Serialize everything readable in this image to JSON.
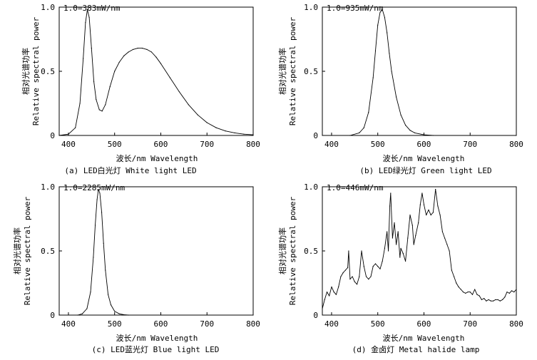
{
  "chart_data": [
    {
      "type": "line",
      "title": "",
      "caption": "(a) LED白光灯 White light LED",
      "annotation": "1.0=383mW/nm",
      "xlabel": "波长/nm Wavelength",
      "ylabel_cn": "相对光谱功率",
      "ylabel_en": "Relative spectral power",
      "xlim": [
        380,
        800
      ],
      "ylim": [
        0,
        1.0
      ],
      "xticks": [
        "400",
        "500",
        "600",
        "700",
        "800"
      ],
      "yticks": [
        "0",
        "0.5",
        "1.0"
      ],
      "series": [
        {
          "x": [
            380,
            400,
            415,
            425,
            432,
            437,
            441,
            445,
            450,
            455,
            460,
            467,
            473,
            480,
            490,
            500,
            510,
            520,
            530,
            540,
            550,
            560,
            570,
            580,
            590,
            600,
            620,
            640,
            660,
            680,
            700,
            720,
            740,
            760,
            780,
            800
          ],
          "y": [
            0,
            0.01,
            0.06,
            0.25,
            0.6,
            0.88,
            0.98,
            0.92,
            0.68,
            0.42,
            0.28,
            0.2,
            0.19,
            0.24,
            0.38,
            0.5,
            0.57,
            0.62,
            0.65,
            0.67,
            0.68,
            0.68,
            0.67,
            0.65,
            0.61,
            0.56,
            0.45,
            0.34,
            0.24,
            0.16,
            0.1,
            0.06,
            0.035,
            0.02,
            0.01,
            0.005
          ]
        }
      ]
    },
    {
      "type": "line",
      "title": "",
      "caption": "(b) LED绿光灯 Green light LED",
      "annotation": "1.0=935mW/nm",
      "xlabel": "波长/nm Wavelength",
      "ylabel_cn": "相对光谱功率",
      "ylabel_en": "Relative spectral power",
      "xlim": [
        380,
        800
      ],
      "ylim": [
        0,
        1.0
      ],
      "xticks": [
        "400",
        "500",
        "600",
        "700",
        "800"
      ],
      "yticks": [
        "0",
        "0.5",
        "1.0"
      ],
      "series": [
        {
          "x": [
            380,
            440,
            460,
            470,
            480,
            490,
            495,
            500,
            505,
            510,
            515,
            520,
            525,
            530,
            540,
            550,
            560,
            570,
            580,
            600,
            620,
            800
          ],
          "y": [
            0,
            0,
            0.02,
            0.06,
            0.18,
            0.45,
            0.66,
            0.86,
            0.96,
            0.98,
            0.92,
            0.8,
            0.64,
            0.5,
            0.3,
            0.16,
            0.08,
            0.04,
            0.02,
            0.005,
            0,
            0
          ]
        }
      ]
    },
    {
      "type": "line",
      "title": "",
      "caption": "(c) LED蓝光灯 Blue light LED",
      "annotation": "1.0=2285mW/nm",
      "xlabel": "波长/nm Wavelength",
      "ylabel_cn": "相对光谱功率",
      "ylabel_en": "Relative spectral power",
      "xlim": [
        380,
        800
      ],
      "ylim": [
        0,
        1.0
      ],
      "xticks": [
        "400",
        "500",
        "600",
        "700",
        "800"
      ],
      "yticks": [
        "0",
        "0.5",
        "1.0"
      ],
      "series": [
        {
          "x": [
            380,
            420,
            430,
            440,
            448,
            454,
            458,
            462,
            465,
            468,
            472,
            476,
            480,
            486,
            492,
            500,
            510,
            520,
            530,
            800
          ],
          "y": [
            0,
            0,
            0.01,
            0.05,
            0.18,
            0.45,
            0.7,
            0.9,
            0.98,
            0.95,
            0.8,
            0.56,
            0.35,
            0.16,
            0.08,
            0.03,
            0.01,
            0.003,
            0,
            0
          ]
        }
      ]
    },
    {
      "type": "line",
      "title": "",
      "caption": "(d) 金卤灯 Metal halide lamp",
      "annotation": "1.0=446mW/nm",
      "xlabel": "波长/nm Wavelength",
      "ylabel_cn": "相对光谱功率",
      "ylabel_en": "Relative spectral power",
      "xlim": [
        380,
        800
      ],
      "ylim": [
        0,
        1.0
      ],
      "xticks": [
        "400",
        "500",
        "600",
        "700",
        "800"
      ],
      "yticks": [
        "0",
        "0.5",
        "1.0"
      ],
      "series": [
        {
          "x": [
            380,
            385,
            390,
            395,
            400,
            405,
            410,
            415,
            420,
            425,
            430,
            435,
            437,
            440,
            445,
            450,
            455,
            460,
            465,
            470,
            475,
            480,
            485,
            490,
            495,
            500,
            505,
            510,
            515,
            520,
            523,
            526,
            528,
            532,
            536,
            540,
            544,
            548,
            550,
            555,
            560,
            565,
            570,
            575,
            578,
            582,
            588,
            592,
            596,
            600,
            605,
            610,
            615,
            620,
            625,
            630,
            635,
            640,
            645,
            650,
            655,
            660,
            665,
            670,
            675,
            680,
            685,
            690,
            695,
            700,
            705,
            710,
            715,
            720,
            725,
            730,
            735,
            740,
            745,
            750,
            755,
            760,
            765,
            770,
            775,
            780,
            785,
            790,
            795,
            800
          ],
          "y": [
            0.05,
            0.12,
            0.18,
            0.15,
            0.22,
            0.18,
            0.16,
            0.22,
            0.3,
            0.33,
            0.35,
            0.37,
            0.5,
            0.28,
            0.3,
            0.26,
            0.24,
            0.3,
            0.5,
            0.38,
            0.3,
            0.28,
            0.3,
            0.38,
            0.4,
            0.38,
            0.36,
            0.42,
            0.52,
            0.65,
            0.5,
            0.85,
            0.95,
            0.6,
            0.72,
            0.55,
            0.65,
            0.45,
            0.52,
            0.48,
            0.42,
            0.6,
            0.78,
            0.7,
            0.55,
            0.62,
            0.72,
            0.86,
            0.95,
            0.86,
            0.78,
            0.82,
            0.78,
            0.8,
            0.98,
            0.85,
            0.78,
            0.65,
            0.6,
            0.55,
            0.5,
            0.35,
            0.3,
            0.25,
            0.22,
            0.2,
            0.18,
            0.17,
            0.18,
            0.18,
            0.16,
            0.2,
            0.16,
            0.15,
            0.12,
            0.13,
            0.11,
            0.12,
            0.11,
            0.11,
            0.12,
            0.12,
            0.11,
            0.12,
            0.14,
            0.18,
            0.17,
            0.19,
            0.18,
            0.2
          ]
        }
      ]
    }
  ]
}
